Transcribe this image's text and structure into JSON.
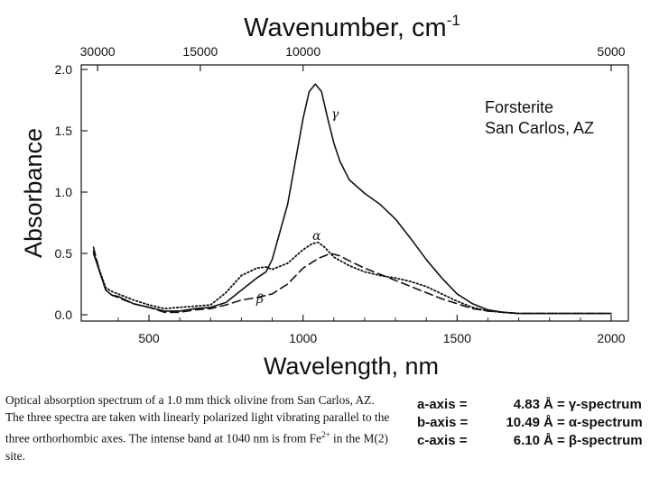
{
  "chart_data": {
    "type": "line",
    "title": "Wavenumber, cm",
    "title_superscript": "-1",
    "xlabel": "Wavelength, nm",
    "ylabel": "Absorbance",
    "xlim": [
      300,
      2000
    ],
    "ylim": [
      0,
      2.0
    ],
    "x_ticks": [
      500,
      1000,
      1500,
      2000
    ],
    "x_tick_labels": [
      "500",
      "1000",
      "1500",
      "2000"
    ],
    "y_ticks": [
      0,
      0.5,
      1.0,
      1.5,
      2.0
    ],
    "y_tick_labels": [
      "0.0",
      "0.5",
      "1.0",
      "1.5",
      "2.0"
    ],
    "top_axis_ticks": [
      30000,
      15000,
      10000,
      5000
    ],
    "top_axis_labels": [
      "30000",
      "15000",
      "10000",
      "5000"
    ],
    "sample_label_line1": "Forsterite",
    "sample_label_line2": "San Carlos, AZ",
    "series": [
      {
        "name": "γ",
        "style": "solid",
        "x": [
          320,
          340,
          360,
          380,
          400,
          450,
          500,
          550,
          600,
          650,
          700,
          750,
          800,
          850,
          880,
          900,
          950,
          1000,
          1020,
          1040,
          1060,
          1080,
          1100,
          1120,
          1150,
          1200,
          1250,
          1300,
          1350,
          1400,
          1450,
          1500,
          1550,
          1600,
          1650,
          1700,
          1800,
          1900,
          2000
        ],
        "y": [
          0.5,
          0.35,
          0.2,
          0.16,
          0.15,
          0.09,
          0.06,
          0.03,
          0.03,
          0.05,
          0.06,
          0.1,
          0.2,
          0.3,
          0.35,
          0.45,
          0.9,
          1.6,
          1.82,
          1.88,
          1.82,
          1.6,
          1.4,
          1.25,
          1.1,
          0.99,
          0.9,
          0.78,
          0.62,
          0.45,
          0.3,
          0.17,
          0.09,
          0.04,
          0.02,
          0.01,
          0.01,
          0.01,
          0.01
        ]
      },
      {
        "name": "α",
        "style": "dotted",
        "x": [
          320,
          340,
          360,
          380,
          400,
          450,
          500,
          550,
          600,
          650,
          700,
          750,
          800,
          850,
          880,
          900,
          950,
          1000,
          1030,
          1050,
          1070,
          1100,
          1150,
          1200,
          1250,
          1300,
          1350,
          1400,
          1450,
          1500,
          1550,
          1600,
          1650,
          1700,
          1800,
          2000
        ],
        "y": [
          0.52,
          0.36,
          0.22,
          0.19,
          0.17,
          0.12,
          0.08,
          0.05,
          0.06,
          0.07,
          0.08,
          0.18,
          0.32,
          0.38,
          0.39,
          0.37,
          0.42,
          0.53,
          0.58,
          0.59,
          0.55,
          0.47,
          0.4,
          0.35,
          0.32,
          0.3,
          0.27,
          0.23,
          0.17,
          0.11,
          0.06,
          0.03,
          0.02,
          0.01,
          0.01,
          0.01
        ]
      },
      {
        "name": "β",
        "style": "dashed",
        "x": [
          320,
          340,
          360,
          380,
          400,
          450,
          500,
          550,
          600,
          650,
          700,
          750,
          800,
          850,
          900,
          950,
          1000,
          1050,
          1090,
          1120,
          1150,
          1200,
          1250,
          1300,
          1350,
          1400,
          1450,
          1500,
          1550,
          1600,
          1650,
          1700,
          1800,
          2000
        ],
        "y": [
          0.55,
          0.35,
          0.2,
          0.16,
          0.14,
          0.09,
          0.06,
          0.02,
          0.02,
          0.04,
          0.05,
          0.08,
          0.12,
          0.14,
          0.17,
          0.25,
          0.38,
          0.46,
          0.5,
          0.48,
          0.44,
          0.38,
          0.33,
          0.28,
          0.23,
          0.18,
          0.13,
          0.09,
          0.05,
          0.03,
          0.02,
          0.01,
          0.01,
          0.01
        ]
      }
    ]
  },
  "caption": {
    "part1": "Optical absorption spectrum of a 1.0 mm thick olivine from San Carlos, AZ. The three spectra are taken with linearly polarized light vibrating parallel to the three orthorhombic axes. The intense band at 1040 nm is from Fe",
    "superscript": "2+",
    "part2": " in the M(2) site."
  },
  "axis_legend": [
    {
      "label": "a-axis =",
      "value": "4.83",
      "spectrum": "Å = γ-spectrum"
    },
    {
      "label": "b-axis =",
      "value": "10.49",
      "spectrum": "Å = α-spectrum"
    },
    {
      "label": "c-axis =",
      "value": "6.10",
      "spectrum": "Å = β-spectrum"
    }
  ]
}
